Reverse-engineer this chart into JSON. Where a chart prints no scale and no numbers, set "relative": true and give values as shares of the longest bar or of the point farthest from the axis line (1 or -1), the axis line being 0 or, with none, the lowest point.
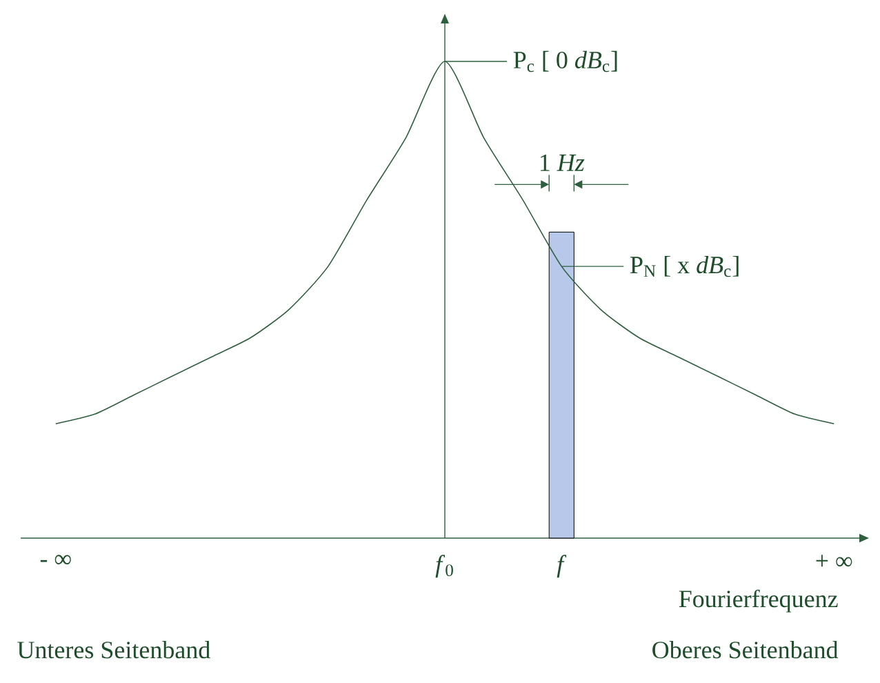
{
  "chart_data": {
    "type": "line",
    "relative": true,
    "xlabel": "Fourierfrequenz",
    "categories": [
      "- ∞",
      null,
      null,
      null,
      null,
      null,
      null,
      null,
      null,
      null,
      "*f*$_{0}$",
      null,
      null,
      "*f*",
      null,
      null,
      null,
      null,
      null,
      null,
      "+ ∞"
    ],
    "series": [
      {
        "color": "#2f5f3f",
        "values": [
          0.24,
          0.26,
          0.3,
          0.34,
          0.38,
          0.42,
          0.48,
          0.57,
          0.71,
          0.84,
          1,
          0.84,
          0.71,
          0.57,
          0.48,
          0.42,
          0.38,
          0.34,
          0.3,
          0.26,
          0.24
        ]
      }
    ],
    "marker": "none",
    "bands": [
      {
        "axis": "x",
        "from": "*f*",
        "to": "*f*",
        "label": "1 *Hz*",
        "color": "#b8c8ea"
      }
    ],
    "annotations": [
      {
        "text": "P$_{c}$ [ 0 *dB*$_{c}$]",
        "x": "*f*$_{0}$",
        "y": 1
      },
      {
        "text": "P$_{N}$ [ x *dB*$_{c}$]",
        "x": "*f*",
        "y": 0.57
      },
      "Unteres Seitenband",
      "Oberes Seitenband"
    ]
  }
}
